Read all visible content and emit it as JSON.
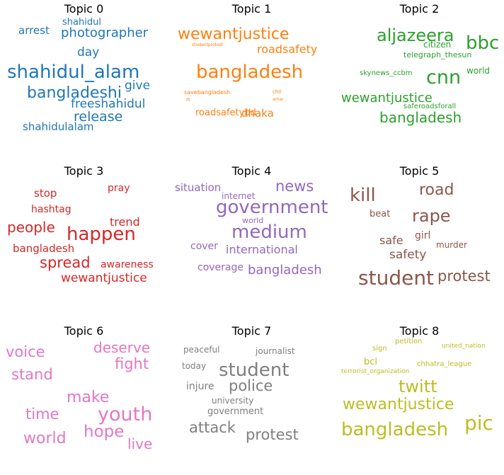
{
  "topics": [
    {
      "title": "Topic 0",
      "color": "#1f77b4",
      "words": [
        "shahidul",
        "arrest",
        "photographer",
        "day",
        "shahidul_alam",
        "give",
        "bangladeshi",
        "freeshahidul",
        "release",
        "shahidulalam"
      ]
    },
    {
      "title": "Topic 1",
      "color": "#ff7f0e",
      "words": [
        "wewantjustice",
        "studentprotest",
        "roadsafety",
        "bangladesh",
        "savebangladesh",
        "rt",
        "chil",
        "amar",
        "roadsafetybd",
        "dhaka"
      ]
    },
    {
      "title": "Topic 2",
      "color": "#2ca02c",
      "words": [
        "aljazeera",
        "bbc",
        "citizen",
        "telegraph_thesun",
        "skynews_ccbm",
        "cnn",
        "world",
        "wewantjustice",
        "saferoadsforall",
        "bangladesh"
      ]
    },
    {
      "title": "Topic 3",
      "color": "#d62728",
      "words": [
        "stop",
        "pray",
        "hashtag",
        "trend",
        "people",
        "happen",
        "bangladesh",
        "spread",
        "awareness",
        "wewantjustice"
      ]
    },
    {
      "title": "Topic 4",
      "color": "#9467bd",
      "words": [
        "situation",
        "news",
        "internet",
        "government",
        "world",
        "medium",
        "cover",
        "international",
        "coverage",
        "bangladesh"
      ]
    },
    {
      "title": "Topic 5",
      "color": "#8c564b",
      "words": [
        "kill",
        "road",
        "beat",
        "rape",
        "girl",
        "safe",
        "murder",
        "safety",
        "student",
        "protest"
      ]
    },
    {
      "title": "Topic 6",
      "color": "#e377c2",
      "words": [
        "voice",
        "deserve",
        "fight",
        "stand",
        "make",
        "time",
        "youth",
        "world",
        "hope",
        "live"
      ]
    },
    {
      "title": "Topic 7",
      "color": "#7f7f7f",
      "words": [
        "peaceful",
        "journalist",
        "today",
        "student",
        "injure",
        "police",
        "university",
        "government",
        "attack",
        "protest"
      ]
    },
    {
      "title": "Topic 8",
      "color": "#bcbd22",
      "words": [
        "petition",
        "sign",
        "united_nation",
        "bcl",
        "chhatra_league",
        "terrorist_organization",
        "twitt",
        "wewantjustice",
        "bangladesh",
        "pic"
      ]
    }
  ]
}
